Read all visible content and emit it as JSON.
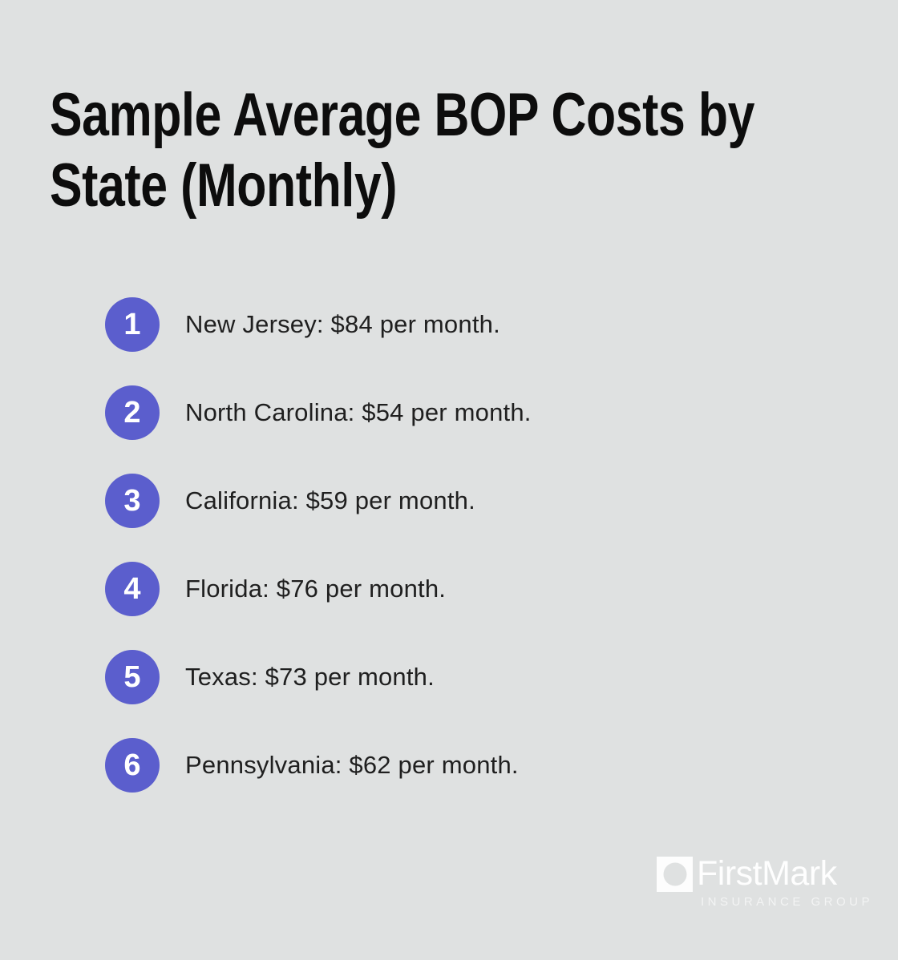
{
  "colors": {
    "background": "#dfe1e1",
    "accent": "#5b5ecd",
    "title_text": "#0d0d0d",
    "item_text": "#1f1f1f",
    "badge_number": "#ffffff",
    "logo": "#ffffff"
  },
  "title": {
    "line1": "Sample Average BOP Costs by",
    "line2": "State (Monthly)"
  },
  "list": {
    "items": [
      {
        "number": "1",
        "label": "New Jersey: $84 per month."
      },
      {
        "number": "2",
        "label": "North Carolina: $54 per month."
      },
      {
        "number": "3",
        "label": "California: $59 per month."
      },
      {
        "number": "4",
        "label": "Florida: $76 per month."
      },
      {
        "number": "5",
        "label": "Texas: $73 per month."
      },
      {
        "number": "6",
        "label": "Pennsylvania: $62 per month."
      }
    ]
  },
  "logo": {
    "wordmark": "FirstMark",
    "subtitle": "INSURANCE GROUP"
  }
}
